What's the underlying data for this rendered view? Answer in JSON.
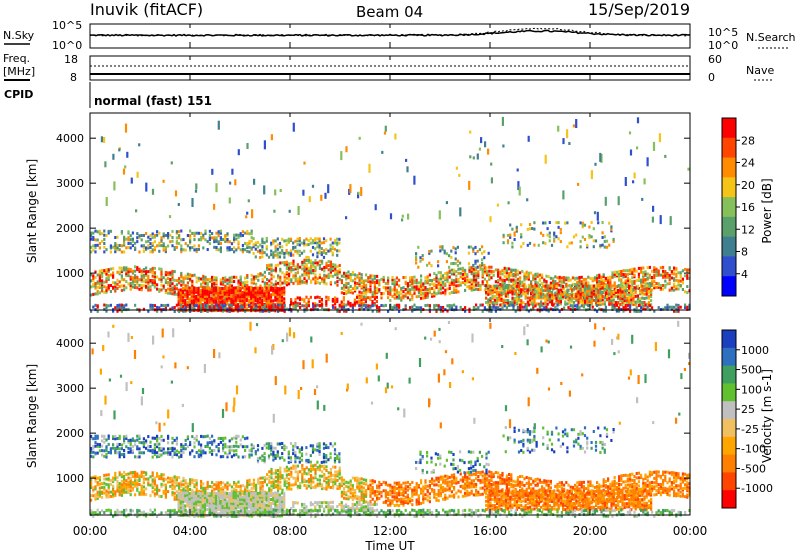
{
  "header": {
    "station": "Inuvik (fitACF)",
    "beam": "Beam 04",
    "date": "15/Sep/2019"
  },
  "panel_labels": {
    "nsky": "N.Sky",
    "freq": "Freq.",
    "freq_unit": "[MHz]",
    "cpid": "CPID",
    "nsearch": "N.Search",
    "nave": "Nave",
    "mode": "normal (fast) 151"
  },
  "colors": {
    "power_scale": [
      "#0000ff",
      "#2f4fcf",
      "#3f7f8f",
      "#5aa06a",
      "#86c05a",
      "#f5c419",
      "#ff8c00",
      "#ff4500",
      "#ff0000"
    ],
    "velocity_scale": [
      "#ff0000",
      "#ff4500",
      "#ff7f00",
      "#ffa500",
      "#f0c060",
      "#c0c0c0",
      "#60c030",
      "#3f9f5f",
      "#2f6fbf",
      "#1a3fbf"
    ]
  },
  "chart_data": [
    {
      "type": "line",
      "name": "noise-panel",
      "left_axis_labels": [
        "10^5",
        "10^0"
      ],
      "right_axis_labels": [
        "10^5",
        "10^0"
      ],
      "series": [
        {
          "name": "N.Sky",
          "style": "solid"
        },
        {
          "name": "N.Search",
          "style": "dotted"
        }
      ]
    },
    {
      "type": "line",
      "name": "freq-panel",
      "left_ticks": [
        18,
        8
      ],
      "right_ticks": [
        60,
        0
      ],
      "series": [
        {
          "name": "Freq.",
          "style": "solid",
          "value": 10.5
        },
        {
          "name": "Nave",
          "style": "dotted",
          "value": 35
        }
      ]
    },
    {
      "type": "heatmap",
      "name": "power",
      "ylabel": "Slant Range [km]",
      "ylim": [
        180,
        4560
      ],
      "yticks": [
        1000,
        2000,
        3000,
        4000
      ],
      "xlim": [
        0,
        24
      ],
      "colorbar_label": "Power [dB]",
      "colorbar_ticks": [
        "28",
        "24",
        "20",
        "16",
        "12",
        "8",
        "4"
      ]
    },
    {
      "type": "heatmap",
      "name": "velocity",
      "ylabel": "Slant Range [km]",
      "ylim": [
        180,
        4560
      ],
      "yticks": [
        1000,
        2000,
        3000,
        4000
      ],
      "xlim": [
        0,
        24
      ],
      "colorbar_label": "Velocity [m s-1]",
      "colorbar_ticks": [
        "1000",
        "500",
        "100",
        "25",
        "-25",
        "-100",
        "-500",
        "-1000"
      ]
    }
  ],
  "xaxis": {
    "label": "Time UT",
    "ticks": [
      "00:00",
      "04:00",
      "08:00",
      "12:00",
      "16:00",
      "20:00",
      "00:00"
    ]
  }
}
